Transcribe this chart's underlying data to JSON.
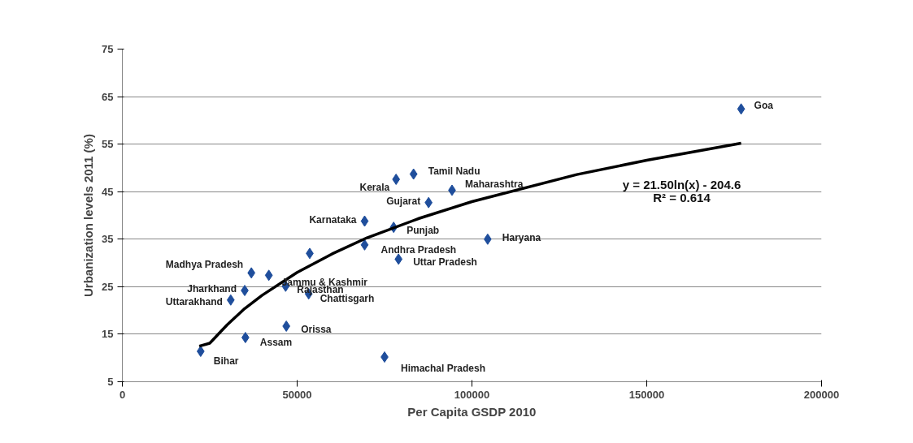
{
  "chart_data": {
    "type": "scatter",
    "xlabel": "Per Capita GSDP 2010",
    "ylabel": "Urbanization levels 2011 (%)",
    "xlim": [
      0,
      200000
    ],
    "ylim": [
      5,
      75
    ],
    "xticks": [
      0,
      50000,
      100000,
      150000,
      200000
    ],
    "yticks": [
      5,
      15,
      25,
      35,
      45,
      55,
      65,
      75
    ],
    "grid": "y",
    "marker": "diamond",
    "series": [
      {
        "color": "#1f4e9c",
        "x": [
          177000,
          83300,
          78300,
          94300,
          87600,
          69300,
          77600,
          104500,
          69300,
          53600,
          79000,
          36900,
          41900,
          46700,
          35000,
          53300,
          31000,
          46900,
          35200,
          22400,
          75000
        ],
        "values": [
          62.4,
          48.7,
          47.6,
          45.3,
          42.7,
          38.8,
          37.5,
          35.0,
          33.8,
          32.0,
          30.8,
          27.9,
          27.4,
          25.1,
          24.2,
          23.5,
          22.2,
          16.7,
          14.3,
          11.4,
          10.2
        ]
      },
      {
        "type": "line",
        "marker": "none",
        "color": "#000000",
        "x": [
          22000,
          25000,
          30000,
          35000,
          40000,
          50000,
          60000,
          70000,
          85000,
          100000,
          130000,
          150000,
          177000
        ],
        "values": [
          12.5,
          13.1,
          17.0,
          20.4,
          23.2,
          28.0,
          31.9,
          35.3,
          39.4,
          42.9,
          48.6,
          51.6,
          55.2
        ]
      }
    ],
    "annotations": [
      {
        "text": "Goa",
        "x": 177000,
        "y": 62.4
      },
      {
        "text": "Tamil Nadu",
        "x": 83300,
        "y": 48.7
      },
      {
        "text": "Kerala",
        "x": 78300,
        "y": 47.6
      },
      {
        "text": "Maharashtra",
        "x": 94300,
        "y": 45.3
      },
      {
        "text": "Gujarat",
        "x": 87600,
        "y": 42.7
      },
      {
        "text": "Karnataka",
        "x": 69300,
        "y": 38.8
      },
      {
        "text": "Punjab",
        "x": 77600,
        "y": 37.5
      },
      {
        "text": "Haryana",
        "x": 104500,
        "y": 35.0
      },
      {
        "text": "Andhra Pradesh",
        "x": 69300,
        "y": 33.8
      },
      {
        "text": "Uttar Pradesh",
        "x": 79000,
        "y": 30.8
      },
      {
        "text": "Madhya Pradesh",
        "x": 36900,
        "y": 27.9
      },
      {
        "text": "Jammu & Kashmir",
        "x": 41900,
        "y": 27.4
      },
      {
        "text": "Rajasthan",
        "x": 46700,
        "y": 25.1
      },
      {
        "text": "Jharkhand",
        "x": 35000,
        "y": 24.2
      },
      {
        "text": "Chattisgarh",
        "x": 53300,
        "y": 23.5
      },
      {
        "text": "Uttarakhand",
        "x": 31000,
        "y": 22.2
      },
      {
        "text": "Orissa",
        "x": 46900,
        "y": 16.7
      },
      {
        "text": "Assam",
        "x": 35200,
        "y": 14.3
      },
      {
        "text": "Bihar",
        "x": 22400,
        "y": 11.4
      },
      {
        "text": "Himachal Pradesh",
        "x": 75000,
        "y": 10.2
      },
      "y = 21.50ln(x) - 204.6",
      "R² = 0.614"
    ]
  }
}
